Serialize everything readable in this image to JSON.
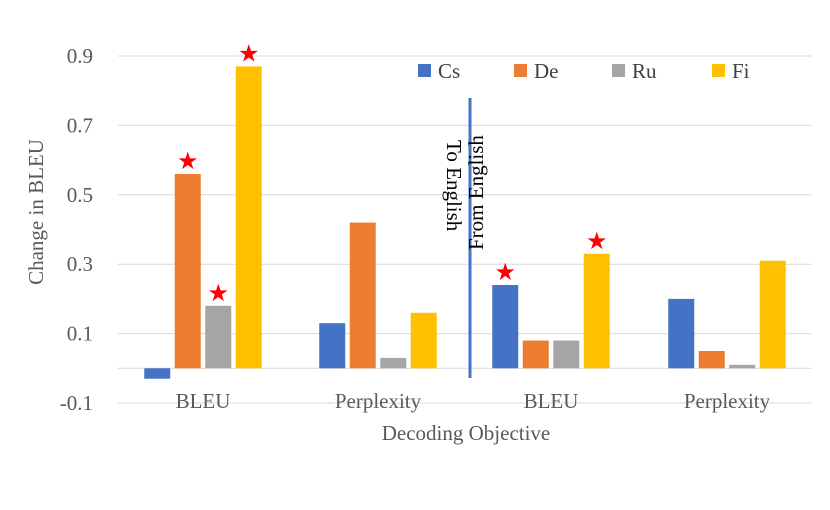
{
  "chart_data": {
    "type": "bar",
    "title": "",
    "xlabel": "Decoding Objective",
    "ylabel": "Change in BLEU",
    "ylim": [
      -0.1,
      1.0
    ],
    "yticks": [
      -0.1,
      0.1,
      0.3,
      0.5,
      0.7,
      0.9
    ],
    "ytick_labels": [
      "-0.1",
      "0.1",
      "0.3",
      "0.5",
      "0.7",
      "0.9"
    ],
    "categories": [
      "BLEU",
      "Perplexity",
      "BLEU",
      "Perplexity"
    ],
    "series": [
      {
        "name": "Cs",
        "color": "#4472C4",
        "values": [
          -0.03,
          0.13,
          0.24,
          0.2
        ],
        "significant": [
          false,
          false,
          true,
          false
        ]
      },
      {
        "name": "De",
        "color": "#ED7D31",
        "values": [
          0.56,
          0.42,
          0.08,
          0.05
        ],
        "significant": [
          true,
          false,
          false,
          false
        ]
      },
      {
        "name": "Ru",
        "color": "#A5A5A5",
        "values": [
          0.18,
          0.03,
          0.08,
          0.01
        ],
        "significant": [
          true,
          false,
          false,
          false
        ]
      },
      {
        "name": "Fi",
        "color": "#FFC000",
        "values": [
          0.87,
          0.16,
          0.33,
          0.31
        ],
        "significant": [
          true,
          false,
          true,
          false
        ]
      }
    ],
    "divider": {
      "left_label": "To English",
      "right_label": "From English",
      "color": "#4472C4"
    },
    "significance_marker": "★",
    "significance_color": "#FF0000",
    "legend_position": "top-right",
    "grid": true
  }
}
